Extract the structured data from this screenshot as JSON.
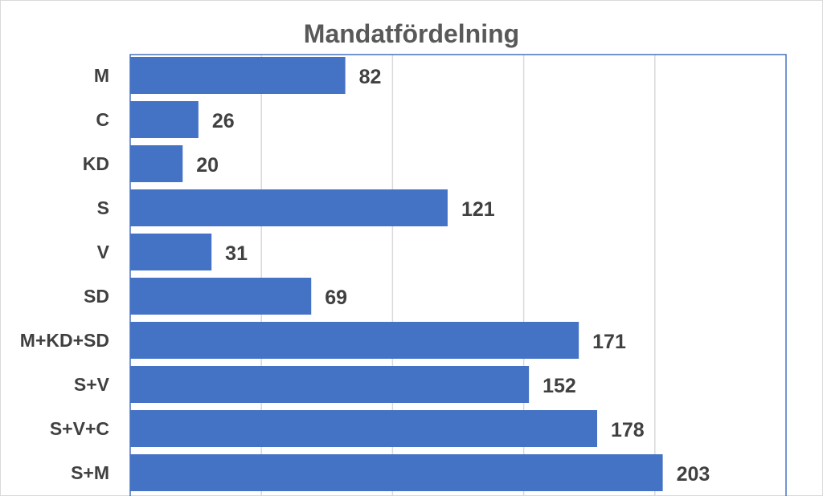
{
  "chart_data": {
    "type": "bar",
    "orientation": "horizontal",
    "title": "Mandatfördelning",
    "categories": [
      "M",
      "C",
      "KD",
      "S",
      "V",
      "SD",
      "M+KD+SD",
      "S+V",
      "S+V+C",
      "S+M"
    ],
    "values": [
      82,
      26,
      20,
      121,
      31,
      69,
      171,
      152,
      178,
      203
    ],
    "xlim": [
      0,
      250
    ],
    "grid": true,
    "bar_color": "#4472c4",
    "data_labels": true
  }
}
